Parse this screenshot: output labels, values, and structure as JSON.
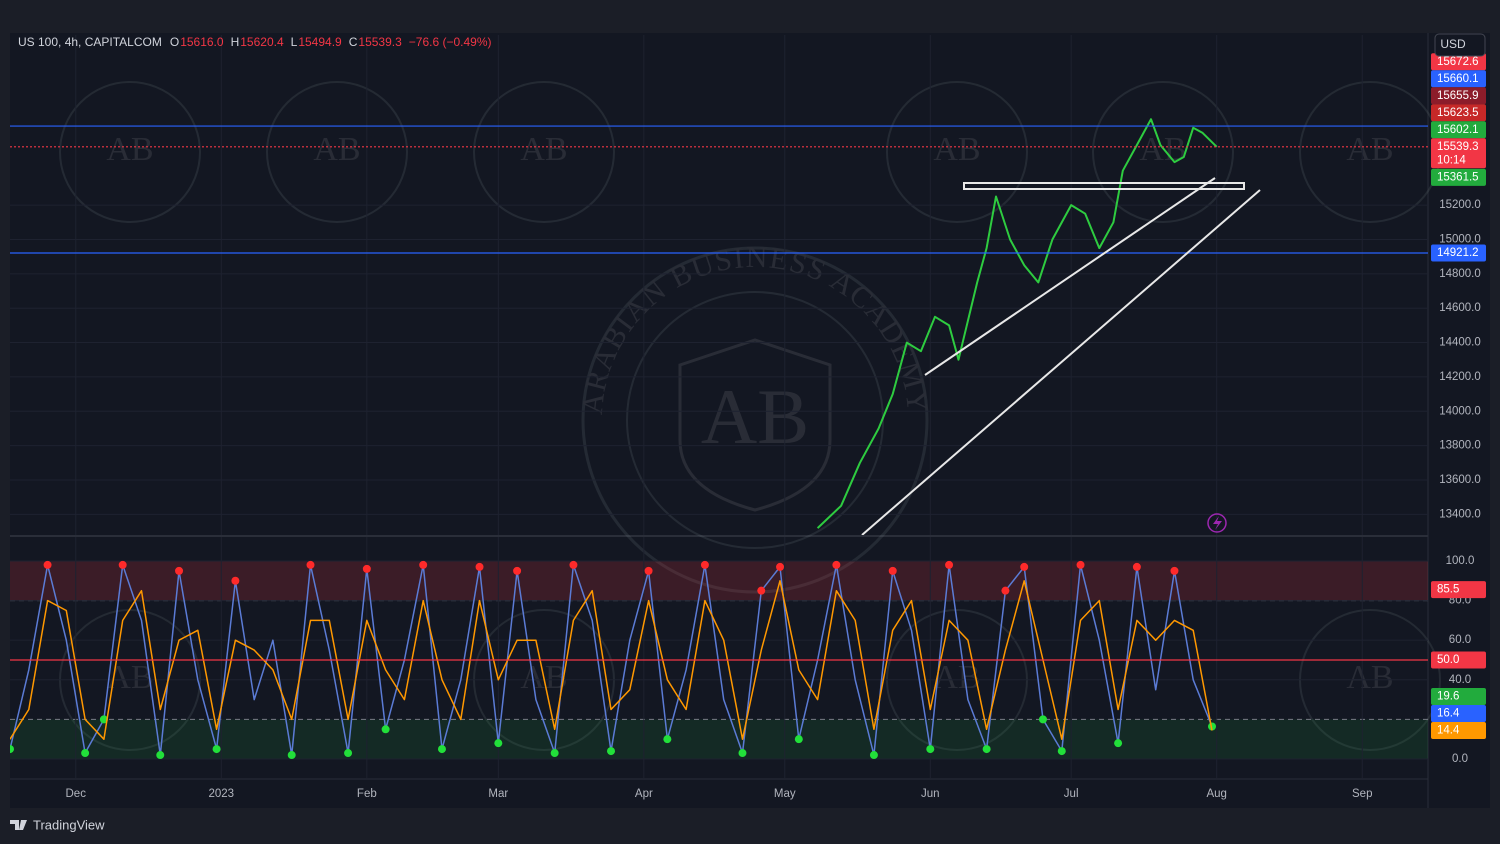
{
  "chart_data": [
    {
      "type": "line",
      "title": "US 100, 4h, CAPITALCOM",
      "ohlc": [
        {
          "key": "O",
          "text": "15616.0"
        },
        {
          "key": "H",
          "text": "15620.4"
        },
        {
          "key": "L",
          "text": "15494.9"
        },
        {
          "key": "C",
          "text": "15539.3"
        }
      ],
      "change": "−76.6 (−0.49%)",
      "currency": "USD",
      "x": [
        158,
        163,
        167,
        171,
        174,
        177,
        180,
        183,
        186,
        188,
        192,
        194,
        196,
        199,
        202,
        205,
        208,
        212,
        215,
        218,
        221,
        223,
        226,
        229,
        231,
        234,
        236,
        238,
        240,
        243
      ],
      "series": [
        {
          "color": "#2ecc40",
          "values": [
            13320,
            13450,
            13700,
            13900,
            14100,
            14400,
            14350,
            14550,
            14500,
            14300,
            14750,
            14950,
            15250,
            15000,
            14850,
            14750,
            15000,
            15200,
            15150,
            14950,
            15100,
            15400,
            15550,
            15700,
            15550,
            15450,
            15480,
            15650,
            15620,
            15539.3
          ]
        }
      ],
      "xlim": [
        -14,
        288
      ],
      "ylim": [
        13280,
        16190
      ],
      "yticks": [
        {
          "value": 13400,
          "label": "13400.0"
        },
        {
          "value": 13600,
          "label": "13600.0"
        },
        {
          "value": 13800,
          "label": "13800.0"
        },
        {
          "value": 14000,
          "label": "14000.0"
        },
        {
          "value": 14200,
          "label": "14200.0"
        },
        {
          "value": 14400,
          "label": "14400.0"
        },
        {
          "value": 14600,
          "label": "14600.0"
        },
        {
          "value": 14800,
          "label": "14800.0"
        },
        {
          "value": 15000,
          "label": "15000.0"
        },
        {
          "value": 15200,
          "label": "15200.0"
        }
      ],
      "price_labels": [
        {
          "value": 15672.6,
          "color": "#f23645"
        },
        {
          "value": 15660.1,
          "color": "#2962ff",
          "line": "solid"
        },
        {
          "value": 15655.9,
          "color": "#8c1c2a"
        },
        {
          "value": 15623.5,
          "color": "#c62828"
        },
        {
          "value": 15602.1,
          "color": "#22ab3d"
        },
        {
          "value": 15539.3,
          "color": "#f23645",
          "line": "dotted",
          "countdown": "10:14"
        },
        {
          "value": 15361.5,
          "color": "#22ab3d"
        },
        {
          "value": 14921.2,
          "color": "#2962ff",
          "line": "solid"
        }
      ],
      "grid": true
    },
    {
      "type": "line",
      "x": [
        -14,
        -10,
        -6,
        -2,
        2,
        6,
        10,
        14,
        18,
        22,
        26,
        30,
        34,
        38,
        42,
        46,
        50,
        54,
        58,
        62,
        66,
        70,
        74,
        78,
        82,
        86,
        90,
        94,
        98,
        102,
        106,
        110,
        114,
        118,
        122,
        126,
        130,
        134,
        138,
        142,
        146,
        150,
        154,
        158,
        162,
        166,
        170,
        174,
        178,
        182,
        186,
        190,
        194,
        198,
        202,
        206,
        210,
        214,
        218,
        222,
        226,
        230,
        234,
        238,
        242
      ],
      "series": [
        {
          "color": "#5b7bd5",
          "values": [
            5,
            45,
            98,
            60,
            3,
            20,
            98,
            70,
            2,
            95,
            40,
            5,
            90,
            30,
            60,
            2,
            98,
            55,
            3,
            96,
            15,
            50,
            98,
            5,
            40,
            97,
            8,
            95,
            30,
            3,
            98,
            70,
            4,
            60,
            95,
            10,
            45,
            98,
            30,
            3,
            85,
            97,
            10,
            50,
            98,
            40,
            2,
            95,
            65,
            5,
            98,
            30,
            5,
            85,
            97,
            20,
            4,
            98,
            60,
            8,
            97,
            35,
            95,
            40,
            16.4
          ]
        },
        {
          "color": "#ff9800",
          "values": [
            10,
            25,
            80,
            75,
            20,
            10,
            70,
            85,
            25,
            60,
            65,
            15,
            60,
            55,
            45,
            20,
            70,
            70,
            20,
            70,
            45,
            30,
            80,
            40,
            20,
            80,
            40,
            60,
            60,
            15,
            70,
            85,
            25,
            35,
            80,
            40,
            25,
            80,
            60,
            10,
            55,
            90,
            45,
            30,
            85,
            70,
            15,
            65,
            80,
            25,
            70,
            60,
            15,
            55,
            90,
            50,
            10,
            70,
            80,
            25,
            70,
            60,
            70,
            65,
            14.4
          ]
        }
      ],
      "bands": [
        {
          "from": 80,
          "to": 100,
          "color": "rgba(242,54,69,0.18)"
        },
        {
          "from": 0,
          "to": 20,
          "color": "rgba(34,171,61,0.13)"
        }
      ],
      "xlim": [
        -14,
        288
      ],
      "xticks": [
        {
          "value": 0,
          "label": "Dec"
        },
        {
          "value": 31,
          "label": "2023"
        },
        {
          "value": 62,
          "label": "Feb"
        },
        {
          "value": 90,
          "label": "Mar"
        },
        {
          "value": 121,
          "label": "Apr"
        },
        {
          "value": 151,
          "label": "May"
        },
        {
          "value": 182,
          "label": "Jun"
        },
        {
          "value": 212,
          "label": "Jul"
        },
        {
          "value": 243,
          "label": "Aug"
        },
        {
          "value": 274,
          "label": "Sep"
        }
      ],
      "ylim": [
        -9.6,
        112.1
      ],
      "yticks": [
        {
          "value": 0,
          "label": "0.0"
        },
        {
          "value": 40,
          "label": "40.0"
        },
        {
          "value": 60,
          "label": "60.0"
        },
        {
          "value": 80,
          "label": "80.0"
        },
        {
          "value": 100,
          "label": "100.0"
        }
      ],
      "price_labels": [
        {
          "value": 85.5,
          "color": "#f23645"
        },
        {
          "value": 50,
          "label": "50.0",
          "color": "#f23645",
          "line": "solid"
        },
        {
          "value": 19.6,
          "color": "#22ab3d"
        },
        {
          "value": 16.4,
          "color": "#2962ff"
        },
        {
          "value": 14.4,
          "color": "#ff9800"
        }
      ],
      "grid": true
    }
  ],
  "watermark": {
    "ring": "ARABIAN BUSINESS ACADEMY",
    "logo": "AB"
  },
  "footer": "TradingView"
}
